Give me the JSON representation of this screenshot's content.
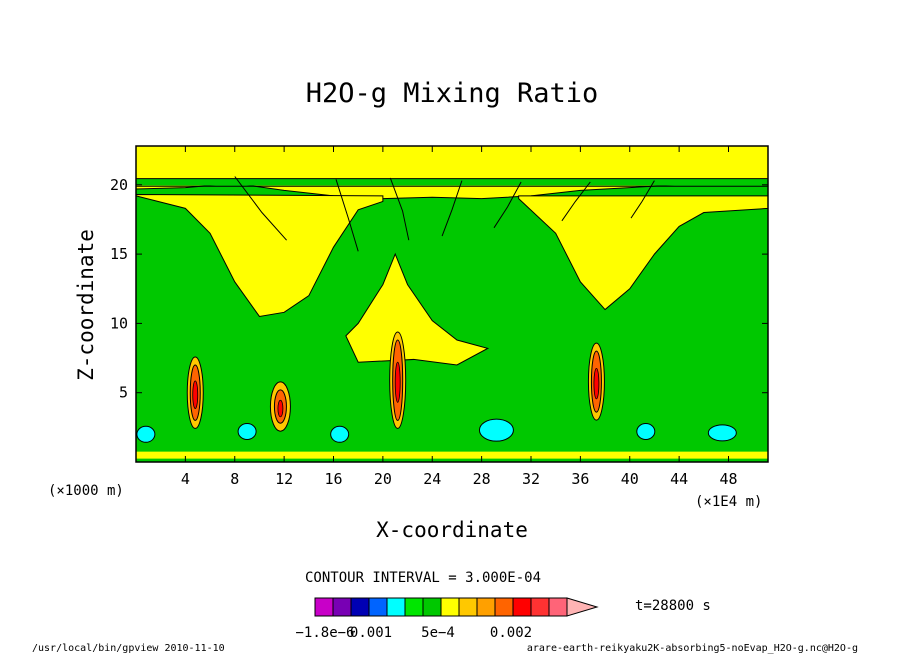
{
  "chart_data": {
    "type": "heatmap",
    "title": "H2O-g Mixing Ratio",
    "xlabel": "X-coordinate",
    "ylabel": "Z-coordinate",
    "x_unit_left": "(×1000 m)",
    "x_unit_right": "(×1E4 m)",
    "x_ticks": [
      "4",
      "8",
      "12",
      "16",
      "20",
      "24",
      "28",
      "32",
      "36",
      "40",
      "44",
      "48"
    ],
    "y_ticks": [
      "5",
      "10",
      "15",
      "20"
    ],
    "xlim": [
      0,
      51.2
    ],
    "ylim": [
      0,
      22.8
    ],
    "contour_interval": "CONTOUR INTERVAL = 3.000E-04",
    "time_label": "t=28800 s",
    "colorbar_labels": [
      "−1.8e−6",
      "0.001",
      "5e−4",
      "0.002"
    ],
    "colorbar_colors": [
      "#c800c8",
      "#7800b4",
      "#0000b4",
      "#0064ff",
      "#00ffff",
      "#00e600",
      "#00c800",
      "#ffff00",
      "#ffc800",
      "#ffa000",
      "#ff6400",
      "#ff0000",
      "#ff3232",
      "#ff6478",
      "#ffb4b4"
    ],
    "series": [
      {
        "name": "background",
        "color": "#00c800",
        "extent": [
          0,
          51.2,
          0,
          22.8
        ]
      },
      {
        "name": "upper-yellow-band",
        "color": "#ffff00",
        "points": [
          [
            0,
            19.7
          ],
          [
            4,
            19.8
          ],
          [
            8,
            20.1
          ],
          [
            12,
            19.6
          ],
          [
            16,
            19.2
          ],
          [
            20,
            19.0
          ],
          [
            24,
            19.1
          ],
          [
            28,
            19.0
          ],
          [
            32,
            19.2
          ],
          [
            36,
            19.6
          ],
          [
            40,
            19.8
          ],
          [
            44,
            20.0
          ],
          [
            48,
            20.0
          ],
          [
            51.2,
            20.0
          ]
        ]
      },
      {
        "name": "anvil-left",
        "color": "#ffff00",
        "points": [
          [
            0,
            19.2
          ],
          [
            4,
            18.3
          ],
          [
            6,
            16.5
          ],
          [
            8,
            13.0
          ],
          [
            10,
            10.5
          ],
          [
            12,
            10.8
          ],
          [
            14,
            12.0
          ],
          [
            16,
            15.5
          ],
          [
            18,
            18.2
          ],
          [
            20,
            18.8
          ]
        ]
      },
      {
        "name": "central-column",
        "color": "#ffff00",
        "points": [
          [
            18,
            10.0
          ],
          [
            20,
            12.8
          ],
          [
            21,
            15.0
          ],
          [
            22,
            12.8
          ],
          [
            24,
            10.2
          ],
          [
            26,
            8.8
          ]
        ]
      },
      {
        "name": "anvil-right",
        "color": "#ffff00",
        "points": [
          [
            31,
            19.0
          ],
          [
            34,
            16.5
          ],
          [
            36,
            13.0
          ],
          [
            38,
            11.0
          ],
          [
            40,
            12.5
          ],
          [
            42,
            15.0
          ],
          [
            44,
            17.0
          ],
          [
            46,
            18.0
          ],
          [
            51.2,
            18.3
          ]
        ]
      },
      {
        "name": "updraft-1",
        "color": "#ff6400",
        "points": [
          [
            4.5,
            7.0
          ],
          [
            4.8,
            5.0
          ],
          [
            5.0,
            3.0
          ]
        ]
      },
      {
        "name": "updraft-2",
        "color": "#ff6400",
        "points": [
          [
            11.5,
            5.2
          ],
          [
            11.7,
            4.0
          ],
          [
            12.0,
            2.8
          ]
        ]
      },
      {
        "name": "updraft-3",
        "color": "#ff6400",
        "points": [
          [
            21.0,
            8.8
          ],
          [
            21.2,
            6.2
          ],
          [
            21.5,
            3.0
          ]
        ]
      },
      {
        "name": "updraft-4",
        "color": "#ff6400",
        "points": [
          [
            37.0,
            8.0
          ],
          [
            37.3,
            5.8
          ],
          [
            37.6,
            3.6
          ]
        ]
      },
      {
        "name": "cyan-low-patches",
        "color": "#00ffff",
        "points": [
          [
            0.8,
            2.0
          ],
          [
            9.0,
            2.2
          ],
          [
            16.5,
            2.0
          ],
          [
            29.2,
            2.3
          ],
          [
            41.3,
            2.2
          ],
          [
            47.5,
            2.1
          ]
        ]
      }
    ],
    "grid": false,
    "legend": "bottom"
  },
  "footer": {
    "left": "/usr/local/bin/gpview  2010-11-10",
    "right": "arare-earth-reikyaku2K-absorbing5-noEvap_H2O-g.nc@H2O-g"
  }
}
